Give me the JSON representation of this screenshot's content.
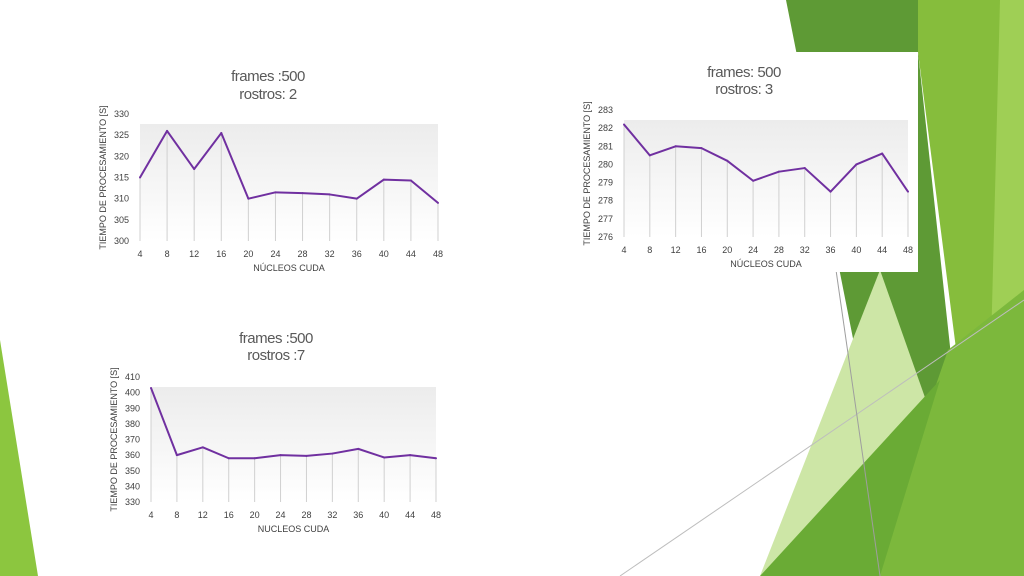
{
  "colors": {
    "line": "#7030a0",
    "grid": "#d0d0d0",
    "green_dark": "#5a9a33",
    "green_mid": "#7bbf3a",
    "green_light": "#a9d46a",
    "green_pale": "#d3e9b3"
  },
  "chart_data": [
    {
      "type": "line",
      "title": "frames :500",
      "subtitle": "rostros: 2",
      "xlabel": "NÚCLEOS CUDA",
      "ylabel": "TIEMPO DE PROCESAMIENTO [S]",
      "categories": [
        "4",
        "8",
        "12",
        "16",
        "20",
        "24",
        "28",
        "32",
        "36",
        "40",
        "44",
        "48"
      ],
      "values": [
        315,
        326,
        317,
        325.5,
        310,
        311.5,
        311.3,
        311,
        310,
        314.5,
        314.3,
        309
      ],
      "ylim": [
        300,
        330
      ],
      "yticks": [
        "330",
        "325",
        "320",
        "315",
        "310",
        "305",
        "300"
      ],
      "grid": "vertical"
    },
    {
      "type": "line",
      "title": "frames: 500",
      "subtitle": "rostros: 3",
      "xlabel": "NÚCLEOS CUDA",
      "ylabel": "TIEMPO DE PROCESAMIENTO [S]",
      "categories": [
        "4",
        "8",
        "12",
        "16",
        "20",
        "24",
        "28",
        "32",
        "36",
        "40",
        "44",
        "48"
      ],
      "values": [
        282.2,
        280.5,
        281,
        280.9,
        280.2,
        279.1,
        279.6,
        279.8,
        278.5,
        280,
        280.6,
        278.5
      ],
      "ylim": [
        276,
        283
      ],
      "yticks": [
        "283",
        "282",
        "281",
        "280",
        "279",
        "278",
        "277",
        "276"
      ],
      "grid": "vertical"
    },
    {
      "type": "line",
      "title": "frames :500",
      "subtitle": "rostros :7",
      "xlabel": "NUCLEOS CUDA",
      "ylabel": "TIEMPO DE PROCESAMIENTO [S]",
      "categories": [
        "4",
        "8",
        "12",
        "16",
        "20",
        "24",
        "28",
        "32",
        "36",
        "40",
        "44",
        "48"
      ],
      "values": [
        403,
        360,
        365,
        358,
        358,
        360,
        359.5,
        361,
        364,
        358.5,
        360,
        358
      ],
      "ylim": [
        330,
        410
      ],
      "yticks": [
        "410",
        "400",
        "390",
        "380",
        "370",
        "360",
        "350",
        "340",
        "330"
      ],
      "grid": "vertical"
    }
  ]
}
